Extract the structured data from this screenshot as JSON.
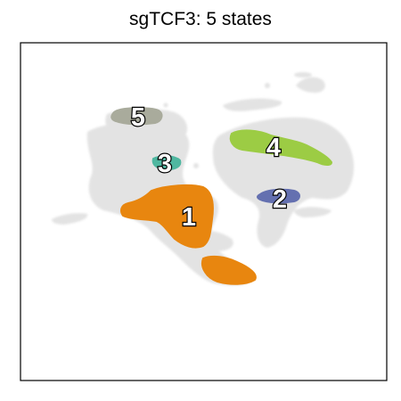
{
  "chart_data": {
    "type": "scatter",
    "title": "sgTCF3: 5 states",
    "xlabel": "",
    "ylabel": "",
    "grid": false,
    "axes_ticks": false,
    "background_cells_color": "#e3e3e3",
    "states": [
      {
        "label": "1",
        "color": "#e8860f"
      },
      {
        "label": "2",
        "color": "#6470b0"
      },
      {
        "label": "3",
        "color": "#4fb7a0"
      },
      {
        "label": "4",
        "color": "#9ccc44"
      },
      {
        "label": "5",
        "color": "#a9ab9c"
      }
    ]
  }
}
